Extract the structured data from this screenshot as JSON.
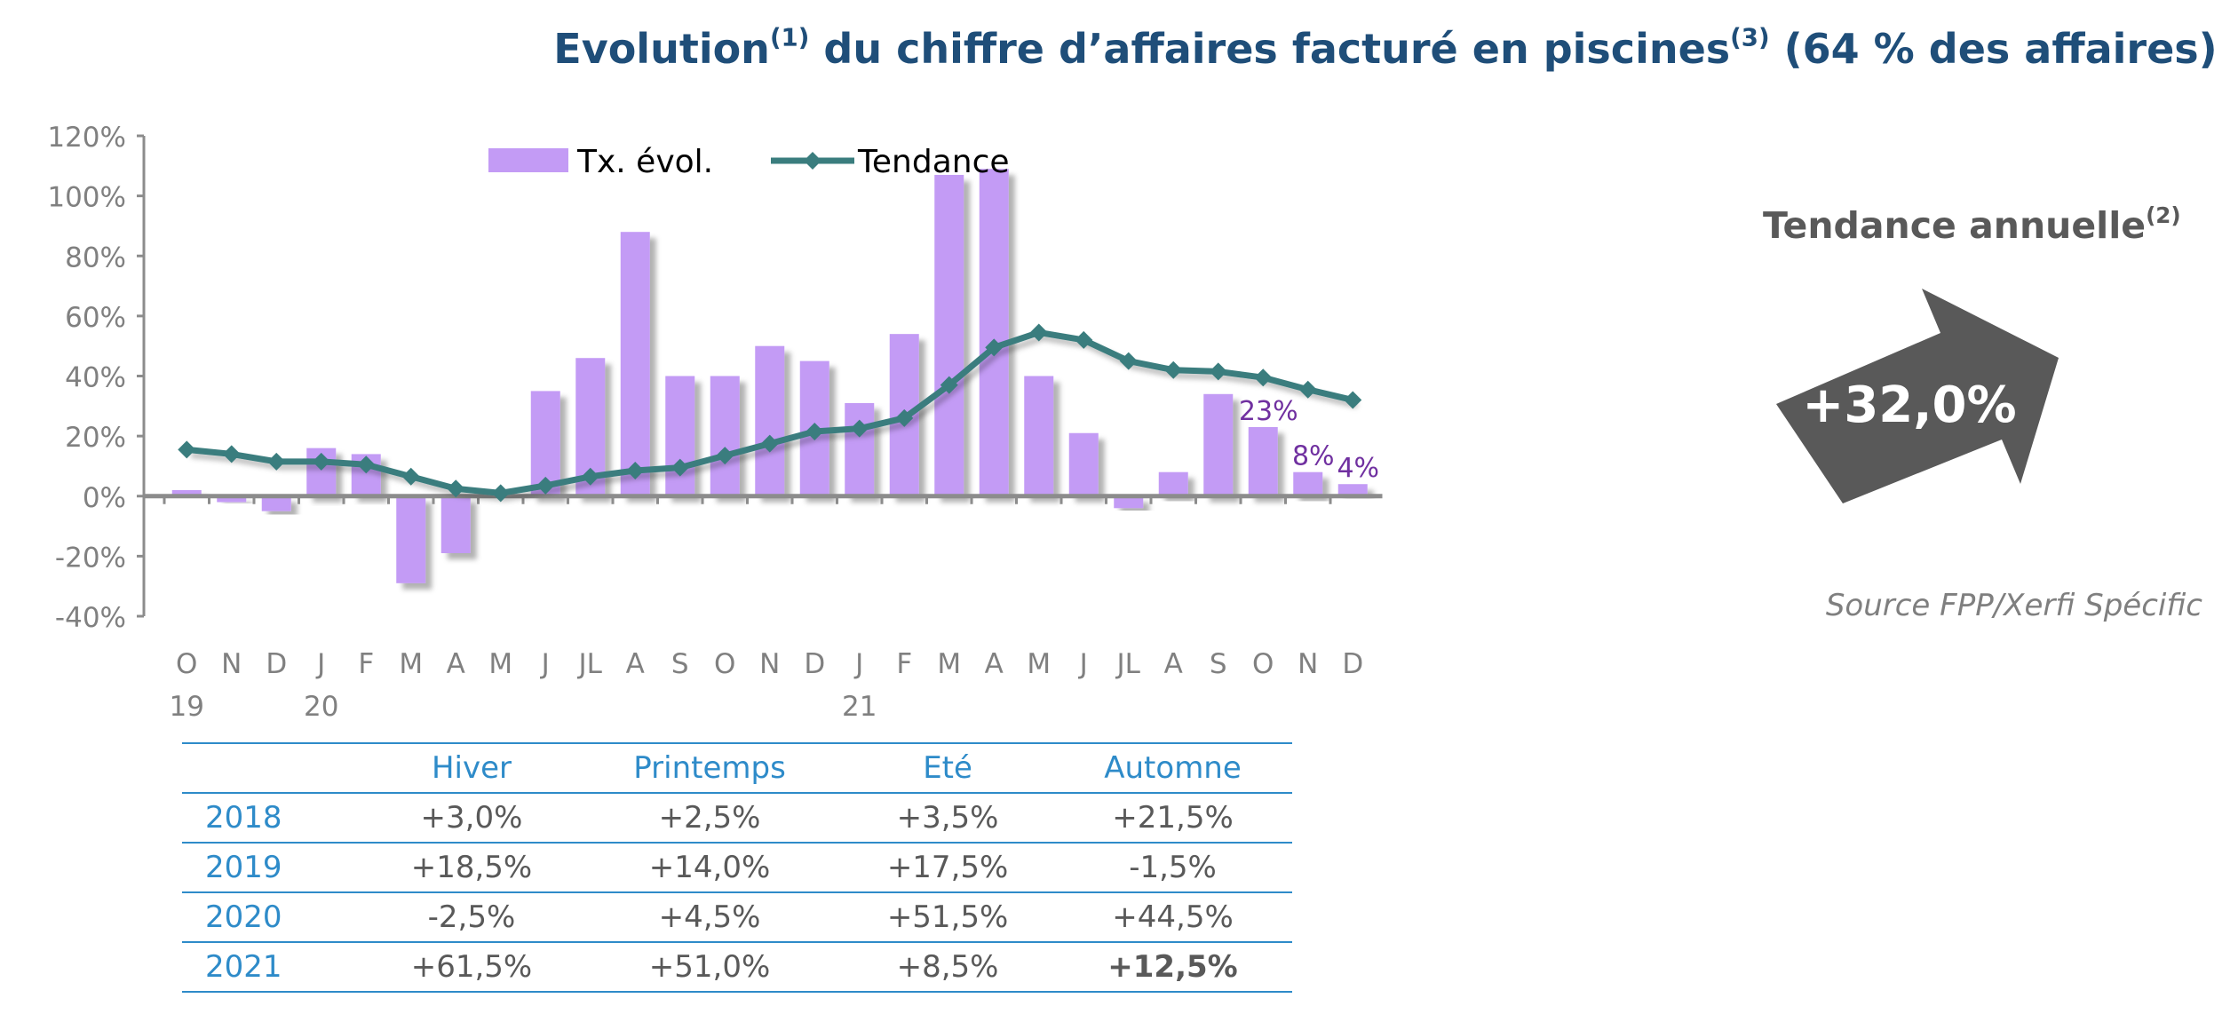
{
  "title": {
    "part1": "Evolution",
    "sup1": "(1)",
    "part2": " du chiffre d’affaires facturé en piscines",
    "sup2": "(3)",
    "part3": " (64 % des affaires)"
  },
  "chart_data": {
    "type": "bar+line",
    "categories": [
      "O",
      "N",
      "D",
      "J",
      "F",
      "M",
      "A",
      "M",
      "J",
      "JL",
      "A",
      "S",
      "O",
      "N",
      "D",
      "J",
      "F",
      "M",
      "A",
      "M",
      "J",
      "JL",
      "A",
      "S",
      "O",
      "N",
      "D"
    ],
    "year_labels": [
      {
        "index": 0,
        "label": "19"
      },
      {
        "index": 3,
        "label": "20"
      },
      {
        "index": 15,
        "label": "21"
      }
    ],
    "series": [
      {
        "name": "Tx. évol.",
        "kind": "bar",
        "color": "#c39bf5",
        "values": [
          2,
          -2,
          -5,
          16,
          14,
          -29,
          -19,
          0,
          35,
          46,
          88,
          40,
          40,
          50,
          45,
          31,
          54,
          107,
          109,
          40,
          21,
          -4,
          8,
          34,
          23,
          8,
          4
        ]
      },
      {
        "name": "Tendance",
        "kind": "line",
        "color": "#3a7d7e",
        "values": [
          15.5,
          14,
          11.5,
          11.5,
          10.5,
          6.5,
          2.5,
          1,
          3.5,
          6.5,
          8.5,
          9.5,
          13.5,
          17.5,
          21.5,
          22.5,
          26,
          37,
          49.5,
          54.5,
          52,
          45,
          42,
          41.5,
          39.5,
          35.5,
          32
        ]
      }
    ],
    "data_labels": [
      {
        "index": 24,
        "text": "23%"
      },
      {
        "index": 25,
        "text": "8%"
      },
      {
        "index": 26,
        "text": "4%"
      }
    ],
    "ylim": [
      -40,
      120
    ],
    "yticks": [
      120,
      100,
      80,
      60,
      40,
      20,
      0,
      -20,
      -40
    ],
    "ytick_labels": [
      "120%",
      "100%",
      "80%",
      "60%",
      "40%",
      "20%",
      "0%",
      "-20%",
      "-40%"
    ],
    "legend": "top",
    "grid": false,
    "label_color": "#7030a0"
  },
  "trend": {
    "title": "Tendance annuelle",
    "sup": "(2)",
    "value": "+32,0%"
  },
  "source": "Source FPP/Xerfi Spécific",
  "table": {
    "headers": [
      "",
      "Hiver",
      "Printemps",
      "Eté",
      "Automne"
    ],
    "rows": [
      {
        "year": "2018",
        "values": [
          "+3,0%",
          "+2,5%",
          "+3,5%",
          "+21,5%"
        ]
      },
      {
        "year": "2019",
        "values": [
          "+18,5%",
          "+14,0%",
          "+17,5%",
          "-1,5%"
        ]
      },
      {
        "year": "2020",
        "values": [
          "-2,5%",
          "+4,5%",
          "+51,5%",
          "+44,5%"
        ]
      },
      {
        "year": "2021",
        "values": [
          "+61,5%",
          "+51,0%",
          "+8,5%",
          "+12,5%"
        ],
        "bold_last": true
      }
    ]
  }
}
